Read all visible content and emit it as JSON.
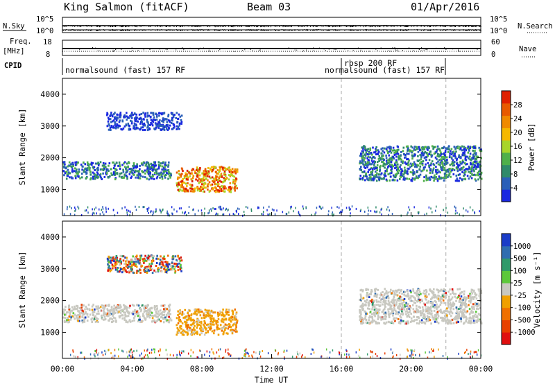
{
  "header": {
    "station": "King Salmon (fitACF)",
    "beam": "Beam 03",
    "date": "01/Apr/2016"
  },
  "panel_labels": {
    "nsky": "N.Sky",
    "nsearch": "N.Search",
    "freq": "Freq.",
    "freq_unit": "[MHz]",
    "nave": "Nave",
    "cpid": "CPID",
    "noise_top_tick": "10^5",
    "noise_bottom_tick": "10^0",
    "freq_ticks": [
      "18",
      "8"
    ],
    "nave_ticks": [
      "60",
      "0"
    ]
  },
  "cpid_segments": [
    {
      "label": "normalsound (fast) 157 RF",
      "start": "00:00",
      "end": "16:00"
    },
    {
      "label": "rbsp 200 RF",
      "start": "16:00",
      "end": "16:10"
    },
    {
      "label": "normalsound (fast) 157 RF",
      "start": "16:10",
      "end": "22:00"
    }
  ],
  "chart_data": [
    {
      "type": "heatmap",
      "name": "power",
      "xlabel": "",
      "ylabel": "Slant Range [km]",
      "x_ticks": [
        "00:00",
        "04:00",
        "08:00",
        "12:00",
        "16:00",
        "20:00",
        "00:00"
      ],
      "y_ticks": [
        "1000",
        "2000",
        "3000",
        "4000"
      ],
      "xlim_hours": [
        0,
        24
      ],
      "ylim_km": [
        180,
        4500
      ],
      "colorbar": {
        "label": "Power [dB]",
        "ticks": [
          "4",
          "8",
          "12",
          "16",
          "20",
          "24",
          "28"
        ],
        "colors": [
          "#1a28e0",
          "#2a5fb8",
          "#2f8a6a",
          "#4fb04a",
          "#a8d52a",
          "#f5b800",
          "#f08a00",
          "#e85a00",
          "#e02000"
        ]
      },
      "regions": [
        {
          "t": [
            0.0,
            6.2
          ],
          "range_km": [
            1350,
            1900
          ],
          "level": "low-mid"
        },
        {
          "t": [
            2.5,
            6.8
          ],
          "range_km": [
            2900,
            3450
          ],
          "level": "low"
        },
        {
          "t": [
            6.5,
            10.0
          ],
          "range_km": [
            950,
            1750
          ],
          "level": "high"
        },
        {
          "t": [
            17.0,
            24.0
          ],
          "range_km": [
            1300,
            2400
          ],
          "level": "low-mid"
        },
        {
          "t": [
            0.0,
            24.0
          ],
          "range_km": [
            200,
            500
          ],
          "level": "noise"
        }
      ]
    },
    {
      "type": "heatmap",
      "name": "velocity",
      "xlabel": "Time UT",
      "ylabel": "Slant Range [km]",
      "x_ticks": [
        "00:00",
        "04:00",
        "08:00",
        "12:00",
        "16:00",
        "20:00",
        "00:00"
      ],
      "y_ticks": [
        "1000",
        "2000",
        "3000",
        "4000"
      ],
      "xlim_hours": [
        0,
        24
      ],
      "ylim_km": [
        180,
        4500
      ],
      "colorbar": {
        "label": "Velocity [m s⁻¹]",
        "ticks": [
          "1000",
          "500",
          "100",
          "25",
          "-25",
          "-100",
          "-500",
          "-1000"
        ],
        "colors": [
          "#1a3cc8",
          "#2f6db0",
          "#2f9a6a",
          "#5cc83a",
          "#c8c8c0",
          "#f0a000",
          "#f07000",
          "#e84000",
          "#e01010"
        ]
      },
      "regions": [
        {
          "t": [
            0.0,
            6.2
          ],
          "range_km": [
            1350,
            1900
          ],
          "level": "ground-scatter"
        },
        {
          "t": [
            2.5,
            6.8
          ],
          "range_km": [
            2900,
            3450
          ],
          "level": "mixed"
        },
        {
          "t": [
            6.5,
            10.0
          ],
          "range_km": [
            950,
            1750
          ],
          "level": "negative"
        },
        {
          "t": [
            17.0,
            24.0
          ],
          "range_km": [
            1300,
            2400
          ],
          "level": "ground-scatter"
        },
        {
          "t": [
            0.0,
            24.0
          ],
          "range_km": [
            200,
            500
          ],
          "level": "noise"
        }
      ]
    }
  ]
}
